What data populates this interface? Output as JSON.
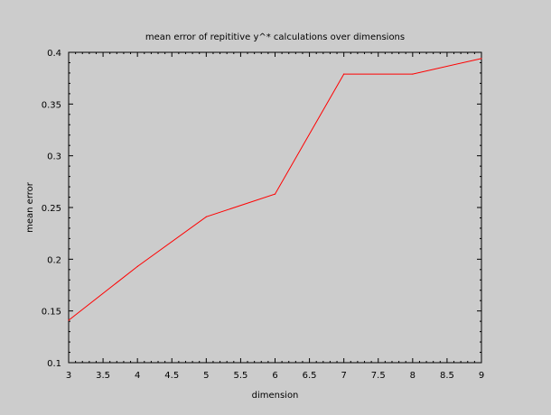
{
  "chart_data": {
    "type": "line",
    "title": "mean error of repititive y^* calculations over dimensions",
    "xlabel": "dimension",
    "ylabel": "mean error",
    "xlim": [
      3,
      9
    ],
    "ylim": [
      0.1,
      0.4
    ],
    "xticks": [
      "3",
      "3.5",
      "4",
      "4.5",
      "5",
      "5.5",
      "6",
      "6.5",
      "7",
      "7.5",
      "8",
      "8.5",
      "9"
    ],
    "yticks": [
      "0.1",
      "0.15",
      "0.2",
      "0.25",
      "0.3",
      "0.35",
      "0.4"
    ],
    "grid": false,
    "series": [
      {
        "color": "#ff0000",
        "x": [
          3,
          4,
          5,
          6,
          7,
          8,
          9
        ],
        "y": [
          0.141,
          0.193,
          0.241,
          0.263,
          0.379,
          0.379,
          0.394
        ]
      }
    ]
  }
}
